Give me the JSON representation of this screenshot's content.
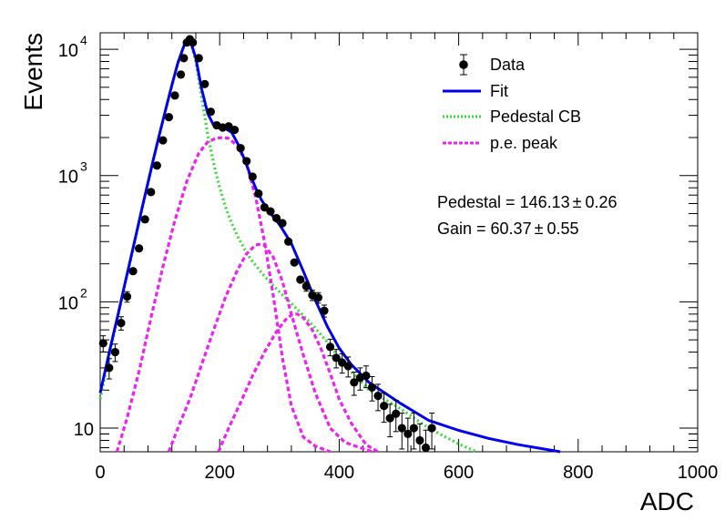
{
  "chart_data": {
    "type": "line",
    "title": "",
    "xlabel": "ADC",
    "ylabel": "Events",
    "xlim": [
      0,
      1000
    ],
    "ylim": [
      6.5,
      13500
    ],
    "log_y": true,
    "grid": false,
    "x_ticks": [
      "0",
      "200",
      "400",
      "600",
      "800",
      "1000"
    ],
    "y_ticks": [
      {
        "value": 10,
        "label": "10",
        "exp": ""
      },
      {
        "value": 100,
        "label": "10",
        "exp": "2"
      },
      {
        "value": 1000,
        "label": "10",
        "exp": "3"
      },
      {
        "value": 10000,
        "label": "10",
        "exp": "4"
      }
    ],
    "legend_position": "top-right",
    "legend": [
      {
        "name": "Data",
        "style": "marker",
        "color": "#000000"
      },
      {
        "name": "Fit",
        "style": "solid",
        "color": "#0000ee"
      },
      {
        "name": "Pedestal CB",
        "style": "dotted",
        "color": "#33dd33"
      },
      {
        "name": "p.e. peak",
        "style": "dashed",
        "color": "#ee22ee"
      }
    ],
    "annotations": [
      {
        "label": "Pedestal = 146.13",
        "pm": "0.26"
      },
      {
        "label": "Gain = 60.37",
        "pm": "0.55"
      }
    ],
    "data_points": [
      {
        "x": 5,
        "y": 47
      },
      {
        "x": 15,
        "y": 30
      },
      {
        "x": 25,
        "y": 40
      },
      {
        "x": 35,
        "y": 68
      },
      {
        "x": 45,
        "y": 110
      },
      {
        "x": 55,
        "y": 175
      },
      {
        "x": 65,
        "y": 265
      },
      {
        "x": 75,
        "y": 450
      },
      {
        "x": 85,
        "y": 740
      },
      {
        "x": 95,
        "y": 1200
      },
      {
        "x": 105,
        "y": 1900
      },
      {
        "x": 115,
        "y": 2900
      },
      {
        "x": 125,
        "y": 4300
      },
      {
        "x": 135,
        "y": 6300
      },
      {
        "x": 140,
        "y": 8500
      },
      {
        "x": 145,
        "y": 11300
      },
      {
        "x": 150,
        "y": 12000
      },
      {
        "x": 155,
        "y": 11300
      },
      {
        "x": 165,
        "y": 8500
      },
      {
        "x": 175,
        "y": 5300
      },
      {
        "x": 185,
        "y": 3200
      },
      {
        "x": 195,
        "y": 2500
      },
      {
        "x": 205,
        "y": 2400
      },
      {
        "x": 215,
        "y": 2450
      },
      {
        "x": 225,
        "y": 2300
      },
      {
        "x": 235,
        "y": 1650
      },
      {
        "x": 245,
        "y": 1300
      },
      {
        "x": 255,
        "y": 980
      },
      {
        "x": 265,
        "y": 720
      },
      {
        "x": 275,
        "y": 560
      },
      {
        "x": 285,
        "y": 520
      },
      {
        "x": 295,
        "y": 460
      },
      {
        "x": 305,
        "y": 420
      },
      {
        "x": 315,
        "y": 300
      },
      {
        "x": 325,
        "y": 205
      },
      {
        "x": 335,
        "y": 150
      },
      {
        "x": 345,
        "y": 133
      },
      {
        "x": 355,
        "y": 113
      },
      {
        "x": 365,
        "y": 108
      },
      {
        "x": 375,
        "y": 85
      },
      {
        "x": 385,
        "y": 44
      },
      {
        "x": 395,
        "y": 36
      },
      {
        "x": 405,
        "y": 33
      },
      {
        "x": 415,
        "y": 31
      },
      {
        "x": 425,
        "y": 23
      },
      {
        "x": 435,
        "y": 25
      },
      {
        "x": 445,
        "y": 26
      },
      {
        "x": 455,
        "y": 21
      },
      {
        "x": 465,
        "y": 18
      },
      {
        "x": 475,
        "y": 15
      },
      {
        "x": 485,
        "y": 12
      },
      {
        "x": 495,
        "y": 13
      },
      {
        "x": 505,
        "y": 10
      },
      {
        "x": 515,
        "y": 9
      },
      {
        "x": 525,
        "y": 10
      },
      {
        "x": 535,
        "y": 8
      },
      {
        "x": 545,
        "y": 7
      },
      {
        "x": 555,
        "y": 10
      }
    ],
    "series": [
      {
        "name": "Fit",
        "color": "#0000ee",
        "dash": "none",
        "x": [
          0,
          10,
          20,
          30,
          40,
          50,
          60,
          70,
          80,
          90,
          100,
          110,
          120,
          130,
          140,
          146,
          152,
          160,
          170,
          180,
          190,
          200,
          210,
          220,
          230,
          240,
          250,
          260,
          270,
          280,
          290,
          300,
          320,
          340,
          360,
          380,
          400,
          420,
          450,
          500,
          550,
          600,
          650,
          700,
          770
        ],
        "y": [
          19,
          31,
          50,
          80,
          130,
          210,
          340,
          550,
          880,
          1400,
          2200,
          3400,
          5200,
          7800,
          10600,
          12000,
          11300,
          8500,
          4800,
          3100,
          2500,
          2380,
          2350,
          2200,
          1800,
          1400,
          1050,
          800,
          640,
          540,
          470,
          410,
          290,
          175,
          103,
          64,
          43,
          32,
          23,
          16,
          11.5,
          9.6,
          8.3,
          7.4,
          6.5
        ]
      },
      {
        "name": "Pedestal CB",
        "color": "#33dd33",
        "dash": "2,3",
        "x": [
          0,
          10,
          20,
          30,
          40,
          50,
          60,
          70,
          80,
          90,
          100,
          110,
          120,
          130,
          140,
          146,
          152,
          160,
          170,
          180,
          190,
          200,
          210,
          220,
          230,
          240,
          250,
          260,
          270,
          280,
          300,
          320,
          340,
          360,
          380,
          400,
          420,
          450,
          500,
          550,
          600,
          630
        ],
        "y": [
          17,
          29,
          48,
          78,
          128,
          205,
          335,
          540,
          870,
          1390,
          2180,
          3380,
          5150,
          7750,
          10500,
          11800,
          11000,
          8000,
          4100,
          2100,
          1250,
          800,
          560,
          420,
          330,
          270,
          225,
          195,
          170,
          150,
          120,
          97,
          78,
          62,
          48,
          36,
          28,
          20,
          14.5,
          10,
          7.5,
          6.5
        ]
      },
      {
        "name": "p.e. peak 1",
        "color": "#ee22ee",
        "dash": "5,3",
        "x": [
          28,
          45,
          65,
          85,
          105,
          125,
          145,
          165,
          180,
          195,
          206,
          215,
          230,
          245,
          260,
          275,
          290,
          305,
          320,
          340,
          360,
          385
        ],
        "y": [
          6.5,
          12,
          28,
          75,
          190,
          440,
          900,
          1500,
          1850,
          1980,
          2000,
          1970,
          1720,
          1240,
          680,
          300,
          110,
          36,
          15,
          8.5,
          7.2,
          6.5
        ]
      },
      {
        "name": "p.e. peak 2",
        "color": "#ee22ee",
        "dash": "5,3",
        "x": [
          115,
          130,
          150,
          170,
          190,
          210,
          230,
          245,
          260,
          267,
          275,
          290,
          305,
          320,
          340,
          360,
          385,
          410,
          455
        ],
        "y": [
          6.5,
          10,
          17,
          32,
          60,
          110,
          180,
          240,
          282,
          285,
          280,
          225,
          145,
          80,
          38,
          19,
          10,
          7.7,
          6.5
        ]
      },
      {
        "name": "p.e. peak 3",
        "color": "#ee22ee",
        "dash": "5,3",
        "x": [
          198,
          215,
          235,
          255,
          275,
          295,
          310,
          322,
          330,
          340,
          355,
          370,
          385,
          400,
          420,
          445,
          465
        ],
        "y": [
          6.5,
          10,
          16,
          26,
          40,
          58,
          72,
          80,
          80,
          75,
          60,
          42,
          27,
          17,
          11,
          7.4,
          6.5
        ]
      }
    ]
  }
}
